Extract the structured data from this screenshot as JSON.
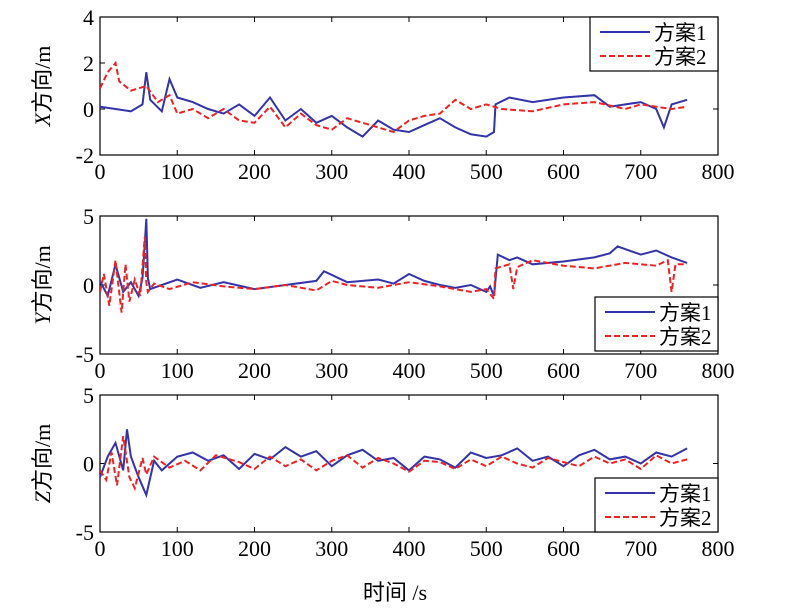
{
  "figure": {
    "xlabel": "时间 /s",
    "series_style": {
      "s1": {
        "color": "#3333aa",
        "dash": "solid"
      },
      "s2": {
        "color": "#ee2222",
        "dash": "dashed"
      }
    }
  },
  "chart_data": [
    {
      "type": "line",
      "title": "",
      "ylabel": "X方向/m",
      "ylabel_italic_prefix": "X",
      "ylabel_rest": "方向/m",
      "xlabel": "",
      "xlim": [
        0,
        800
      ],
      "ylim": [
        -2,
        4
      ],
      "xticks": [
        0,
        100,
        200,
        300,
        400,
        500,
        600,
        700,
        800
      ],
      "yticks": [
        -2,
        0,
        2,
        4
      ],
      "legend": {
        "position": "top-right",
        "labels": [
          "方案1",
          "方案2"
        ]
      },
      "series": [
        {
          "name": "方案1",
          "color": "#3333aa",
          "dash": "solid",
          "x": [
            0,
            20,
            40,
            55,
            60,
            65,
            80,
            90,
            100,
            120,
            140,
            160,
            180,
            200,
            220,
            240,
            260,
            280,
            300,
            320,
            340,
            360,
            380,
            400,
            420,
            440,
            460,
            480,
            500,
            510,
            512,
            530,
            560,
            600,
            640,
            660,
            700,
            720,
            730,
            740,
            760
          ],
          "y": [
            0.1,
            0.0,
            -0.1,
            0.2,
            1.6,
            0.4,
            -0.1,
            1.3,
            0.5,
            0.3,
            0.0,
            -0.2,
            0.2,
            -0.3,
            0.5,
            -0.5,
            0.0,
            -0.6,
            -0.3,
            -0.8,
            -1.2,
            -0.5,
            -0.9,
            -1.0,
            -0.7,
            -0.4,
            -0.8,
            -1.1,
            -1.2,
            -1.0,
            0.2,
            0.5,
            0.3,
            0.5,
            0.6,
            0.1,
            0.3,
            0.0,
            -0.8,
            0.2,
            0.4
          ]
        },
        {
          "name": "方案2",
          "color": "#ee2222",
          "dash": "dashed",
          "x": [
            0,
            10,
            20,
            25,
            40,
            60,
            75,
            90,
            100,
            120,
            140,
            160,
            180,
            200,
            220,
            240,
            260,
            280,
            300,
            320,
            340,
            360,
            380,
            400,
            420,
            440,
            460,
            480,
            500,
            520,
            560,
            600,
            640,
            680,
            700,
            720,
            740,
            760
          ],
          "y": [
            0.9,
            1.6,
            2.0,
            1.2,
            0.8,
            1.0,
            0.3,
            0.6,
            -0.2,
            0.0,
            -0.4,
            0.0,
            -0.5,
            -0.6,
            0.1,
            -0.8,
            -0.2,
            -0.7,
            -0.9,
            -0.4,
            -0.6,
            -0.8,
            -1.0,
            -0.5,
            -0.3,
            -0.2,
            0.4,
            0.0,
            0.2,
            0.0,
            -0.1,
            0.2,
            0.3,
            0.0,
            0.2,
            0.1,
            0.0,
            0.1
          ]
        }
      ]
    },
    {
      "type": "line",
      "title": "",
      "ylabel": "Y方向/m",
      "ylabel_italic_prefix": "Y",
      "ylabel_rest": "方向/m",
      "xlabel": "",
      "xlim": [
        0,
        800
      ],
      "ylim": [
        -5,
        5
      ],
      "xticks": [
        0,
        100,
        200,
        300,
        400,
        500,
        600,
        700,
        800
      ],
      "yticks": [
        -5,
        0,
        5
      ],
      "legend": {
        "position": "bottom-right",
        "labels": [
          "方案1",
          "方案2"
        ]
      },
      "series": [
        {
          "name": "方案1",
          "color": "#3333aa",
          "dash": "solid",
          "x": [
            0,
            10,
            20,
            30,
            40,
            50,
            55,
            58,
            60,
            62,
            65,
            80,
            100,
            130,
            160,
            200,
            240,
            280,
            290,
            320,
            360,
            380,
            400,
            420,
            440,
            460,
            480,
            500,
            505,
            510,
            515,
            530,
            540,
            560,
            600,
            640,
            660,
            670,
            700,
            720,
            740,
            760
          ],
          "y": [
            0.3,
            -0.8,
            1.5,
            -0.5,
            0.2,
            -0.8,
            0.5,
            3.0,
            4.8,
            0.5,
            -0.3,
            0.0,
            0.4,
            -0.2,
            0.2,
            -0.3,
            0.0,
            0.3,
            1.0,
            0.2,
            0.4,
            0.1,
            0.8,
            0.3,
            0.0,
            -0.2,
            0.0,
            -0.5,
            -0.1,
            -0.8,
            2.2,
            1.8,
            2.0,
            1.5,
            1.7,
            2.0,
            2.3,
            2.8,
            2.2,
            2.5,
            2.0,
            1.6
          ]
        },
        {
          "name": "方案2",
          "color": "#ee2222",
          "dash": "dashed",
          "x": [
            0,
            5,
            12,
            20,
            28,
            33,
            38,
            45,
            52,
            58,
            60,
            62,
            70,
            90,
            120,
            160,
            200,
            240,
            280,
            300,
            320,
            360,
            400,
            440,
            480,
            500,
            510,
            512,
            530,
            535,
            540,
            560,
            600,
            640,
            680,
            720,
            735,
            740,
            745,
            760
          ],
          "y": [
            -0.5,
            0.8,
            -1.5,
            1.8,
            -2.0,
            1.5,
            -1.2,
            0.4,
            -0.8,
            3.5,
            0.2,
            -0.5,
            0.1,
            -0.3,
            0.2,
            -0.1,
            -0.3,
            0.0,
            -0.4,
            0.3,
            0.0,
            -0.2,
            0.2,
            -0.1,
            -0.5,
            -0.3,
            -1.0,
            1.2,
            1.5,
            -0.3,
            1.3,
            1.8,
            1.4,
            1.2,
            1.6,
            1.4,
            1.8,
            -0.5,
            1.5,
            1.5
          ]
        }
      ]
    },
    {
      "type": "line",
      "title": "",
      "ylabel": "Z方向/m",
      "ylabel_italic_prefix": "Z",
      "ylabel_rest": "方向/m",
      "xlabel": "",
      "xlim": [
        0,
        800
      ],
      "ylim": [
        -5,
        5
      ],
      "xticks": [
        0,
        100,
        200,
        300,
        400,
        500,
        600,
        700,
        800
      ],
      "yticks": [
        -5,
        0,
        5
      ],
      "legend": {
        "position": "bottom-right",
        "labels": [
          "方案1",
          "方案2"
        ]
      },
      "series": [
        {
          "name": "方案1",
          "color": "#3333aa",
          "dash": "solid",
          "x": [
            0,
            10,
            20,
            30,
            35,
            40,
            50,
            60,
            70,
            80,
            100,
            120,
            140,
            160,
            180,
            200,
            220,
            240,
            260,
            280,
            300,
            320,
            340,
            360,
            380,
            400,
            420,
            440,
            460,
            480,
            500,
            520,
            540,
            560,
            580,
            600,
            620,
            640,
            660,
            680,
            700,
            720,
            740,
            760
          ],
          "y": [
            -1.0,
            0.5,
            1.5,
            -0.5,
            2.5,
            0.5,
            -1.0,
            -2.3,
            0.2,
            -0.5,
            0.5,
            0.8,
            0.2,
            0.6,
            -0.4,
            0.7,
            0.3,
            1.2,
            0.5,
            0.9,
            -0.2,
            0.6,
            1.0,
            0.2,
            0.4,
            -0.5,
            0.5,
            0.3,
            -0.3,
            0.8,
            0.4,
            0.6,
            1.1,
            0.2,
            0.5,
            -0.2,
            0.6,
            1.0,
            0.3,
            0.5,
            0.0,
            0.8,
            0.5,
            1.1
          ]
        },
        {
          "name": "方案2",
          "color": "#ee2222",
          "dash": "dashed",
          "x": [
            0,
            8,
            15,
            22,
            30,
            38,
            45,
            55,
            60,
            70,
            90,
            110,
            130,
            150,
            180,
            200,
            220,
            240,
            260,
            280,
            300,
            320,
            340,
            360,
            380,
            400,
            420,
            440,
            460,
            480,
            500,
            520,
            540,
            560,
            580,
            600,
            620,
            640,
            660,
            680,
            700,
            720,
            740,
            760
          ],
          "y": [
            -0.5,
            -1.2,
            0.8,
            -1.6,
            2.0,
            -1.0,
            -1.8,
            0.4,
            -0.8,
            0.5,
            -0.3,
            0.2,
            -0.5,
            0.6,
            0.1,
            -0.4,
            0.5,
            -0.2,
            0.3,
            -0.5,
            0.2,
            0.6,
            -0.3,
            0.4,
            0.0,
            -0.6,
            0.2,
            0.1,
            -0.4,
            0.3,
            -0.2,
            0.5,
            0.0,
            -0.3,
            0.4,
            0.1,
            -0.2,
            0.5,
            0.0,
            0.3,
            -0.4,
            0.6,
            0.0,
            0.3
          ]
        }
      ]
    }
  ]
}
